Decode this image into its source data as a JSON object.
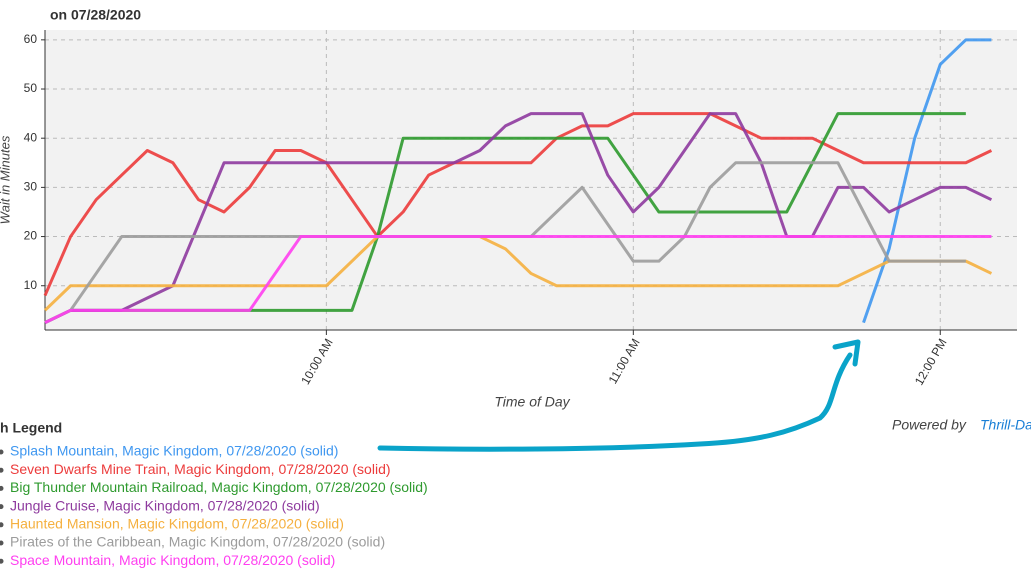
{
  "chart_data": {
    "type": "line",
    "title": "on 07/28/2020",
    "x_label": "Time of Day",
    "y_label": "Wait in Minutes",
    "legend_title": "h Legend",
    "credit": "Powered by",
    "credit_link": "Thrill-Da",
    "x": [
      545,
      550,
      555,
      560,
      565,
      570,
      575,
      580,
      585,
      590,
      595,
      600,
      605,
      610,
      615,
      620,
      625,
      630,
      635,
      640,
      645,
      650,
      655,
      660,
      665,
      670,
      675,
      680,
      685,
      690,
      695,
      700,
      705,
      710,
      715,
      720,
      725,
      730
    ],
    "xlim": [
      545,
      735
    ],
    "xticks": [
      {
        "value": 600,
        "label": "10:00 AM"
      },
      {
        "value": 660,
        "label": "11:00 AM"
      },
      {
        "value": 720,
        "label": "12:00 PM"
      }
    ],
    "ylim": [
      1,
      62
    ],
    "yticks": [
      10,
      20,
      30,
      40,
      50,
      60
    ],
    "grid": true,
    "series": [
      {
        "name": "Splash Mountain, Magic Kingdom, 07/28/2020 (solid)",
        "color": "#3f97f0",
        "values": [
          null,
          null,
          null,
          null,
          null,
          null,
          null,
          null,
          null,
          null,
          null,
          null,
          null,
          null,
          null,
          null,
          null,
          null,
          null,
          null,
          null,
          null,
          null,
          null,
          null,
          null,
          null,
          null,
          null,
          null,
          null,
          null,
          2.5,
          17.5,
          40,
          55,
          60,
          60
        ]
      },
      {
        "name": "Seven Dwarfs Mine Train, Magic Kingdom, 07/28/2020 (solid)",
        "color": "#ec3b3b",
        "values": [
          8,
          20,
          27.5,
          32.5,
          37.5,
          35,
          27.5,
          25,
          30,
          37.5,
          37.5,
          35,
          27.5,
          20,
          25,
          32.5,
          35,
          35,
          35,
          35,
          40,
          42.5,
          42.5,
          45,
          45,
          45,
          45,
          42.5,
          40,
          40,
          40,
          37.5,
          35,
          35,
          35,
          35,
          35,
          37.5
        ]
      },
      {
        "name": "Big Thunder Mountain Railroad, Magic Kingdom, 07/28/2020 (solid)",
        "color": "#2e9a2e",
        "values": [
          2.5,
          5,
          5,
          5,
          5,
          5,
          5,
          5,
          5,
          5,
          5,
          5,
          5,
          20,
          40,
          40,
          40,
          40,
          40,
          40,
          40,
          40,
          40,
          32.5,
          25,
          25,
          25,
          25,
          25,
          25,
          35,
          45,
          45,
          45,
          45,
          45,
          45,
          null
        ]
      },
      {
        "name": "Jungle Cruise, Magic Kingdom, 07/28/2020 (solid)",
        "color": "#8e3a9e",
        "values": [
          2.5,
          5,
          5,
          5,
          7.5,
          10,
          22.5,
          35,
          35,
          35,
          35,
          35,
          35,
          35,
          35,
          35,
          35,
          37.5,
          42.5,
          45,
          45,
          45,
          32.5,
          25,
          30,
          37.5,
          45,
          45,
          35,
          20,
          20,
          30,
          30,
          25,
          27.5,
          30,
          30,
          27.5
        ]
      },
      {
        "name": "Haunted Mansion, Magic Kingdom, 07/28/2020 (solid)",
        "color": "#f5b03f",
        "values": [
          5,
          10,
          10,
          10,
          10,
          10,
          10,
          10,
          10,
          10,
          10,
          10,
          15,
          20,
          20,
          20,
          20,
          20,
          17.5,
          12.5,
          10,
          10,
          10,
          10,
          10,
          10,
          10,
          10,
          10,
          10,
          10,
          10,
          12.5,
          15,
          15,
          15,
          15,
          12.5
        ]
      },
      {
        "name": "Pirates of the Caribbean, Magic Kingdom, 07/28/2020 (solid)",
        "color": "#9c9c9c",
        "values": [
          2.5,
          5,
          12.5,
          20,
          20,
          20,
          20,
          20,
          20,
          20,
          20,
          20,
          20,
          20,
          20,
          20,
          20,
          20,
          20,
          20,
          25,
          30,
          22.5,
          15,
          15,
          20,
          30,
          35,
          35,
          35,
          35,
          35,
          25,
          15,
          15,
          15,
          15,
          null
        ]
      },
      {
        "name": "Space Mountain, Magic Kingdom, 07/28/2020 (solid)",
        "color": "#ff3ff0",
        "values": [
          2.5,
          5,
          5,
          5,
          5,
          5,
          5,
          5,
          5,
          12.5,
          20,
          20,
          20,
          20,
          20,
          20,
          20,
          20,
          20,
          20,
          20,
          20,
          20,
          20,
          20,
          20,
          20,
          20,
          20,
          20,
          20,
          20,
          20,
          20,
          20,
          20,
          20,
          20
        ]
      }
    ]
  }
}
